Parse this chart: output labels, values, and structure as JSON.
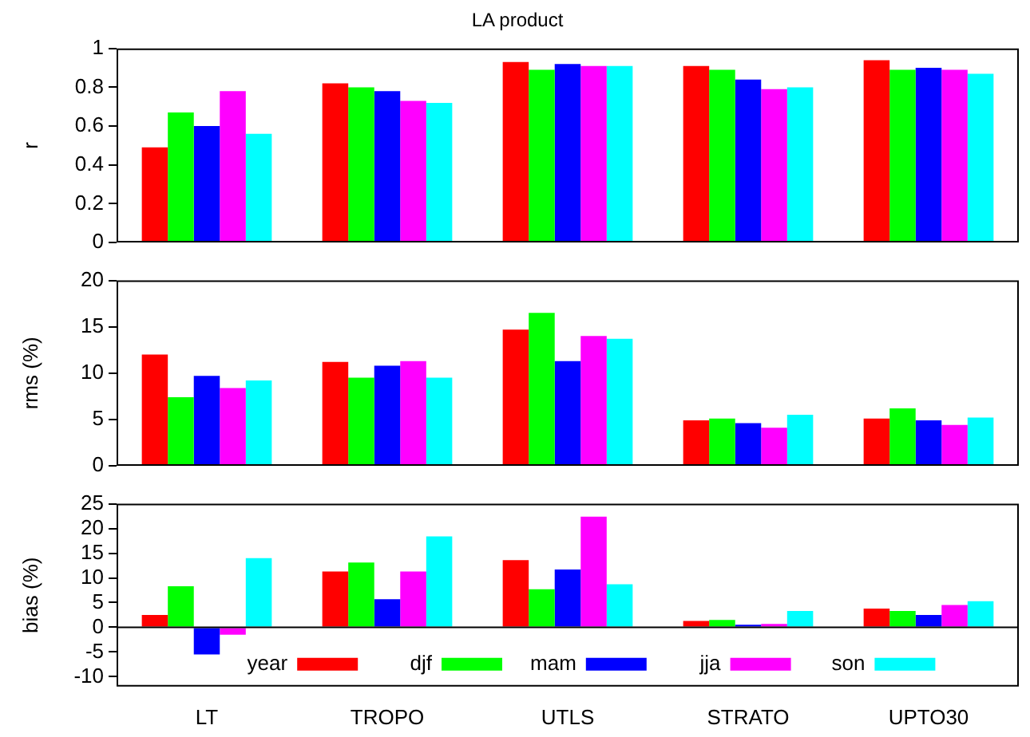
{
  "chart_data": [
    {
      "type": "bar",
      "title": "LA product",
      "ylabel": "r",
      "categories": [
        null,
        null,
        null,
        null,
        null
      ],
      "ylim": [
        0,
        1
      ],
      "yticks": [
        0,
        0.2,
        0.4,
        0.6,
        0.8,
        1
      ],
      "tick_labels": "y",
      "series": [
        {
          "color": "#ff0000",
          "values": [
            0.49,
            0.82,
            0.93,
            0.91,
            0.94
          ]
        },
        {
          "color": "#00ff00",
          "values": [
            0.67,
            0.8,
            0.89,
            0.89,
            0.89
          ]
        },
        {
          "color": "#0000ff",
          "values": [
            0.6,
            0.78,
            0.92,
            0.84,
            0.9
          ]
        },
        {
          "color": "#ff00ff",
          "values": [
            0.78,
            0.73,
            0.91,
            0.79,
            0.89
          ]
        },
        {
          "color": "#00ffff",
          "values": [
            0.56,
            0.72,
            0.91,
            0.8,
            0.87
          ]
        }
      ]
    },
    {
      "type": "bar",
      "ylabel": "rms (%)",
      "categories": [
        null,
        null,
        null,
        null,
        null
      ],
      "ylim": [
        0,
        20
      ],
      "yticks": [
        0,
        5,
        10,
        15,
        20
      ],
      "tick_labels": "y",
      "series": [
        {
          "color": "#ff0000",
          "values": [
            12.0,
            11.2,
            14.7,
            4.9,
            5.1
          ]
        },
        {
          "color": "#00ff00",
          "values": [
            7.4,
            9.5,
            16.5,
            5.1,
            6.2
          ]
        },
        {
          "color": "#0000ff",
          "values": [
            9.7,
            10.8,
            11.3,
            4.6,
            4.9
          ]
        },
        {
          "color": "#ff00ff",
          "values": [
            8.4,
            11.3,
            14.0,
            4.1,
            4.4
          ]
        },
        {
          "color": "#00ffff",
          "values": [
            9.2,
            9.5,
            13.7,
            5.5,
            5.2
          ]
        }
      ]
    },
    {
      "type": "bar",
      "ylabel": "bias (%)",
      "categories": [
        "LT",
        "TROPO",
        "UTLS",
        "STRATO",
        "UPTO30"
      ],
      "ylim": [
        -12,
        25
      ],
      "yticks": [
        -10,
        -5,
        0,
        5,
        10,
        15,
        20,
        25
      ],
      "legend": "bottom",
      "ref_lines": [
        {
          "axis": "y",
          "value": 0,
          "color": "#000000"
        }
      ],
      "series": [
        {
          "name": "year",
          "color": "#ff0000",
          "values": [
            2.5,
            11.3,
            13.6,
            1.3,
            3.8
          ]
        },
        {
          "name": "djf",
          "color": "#00ff00",
          "values": [
            8.3,
            13.1,
            7.7,
            1.5,
            3.3
          ]
        },
        {
          "name": "mam",
          "color": "#0000ff",
          "values": [
            -5.5,
            5.7,
            11.7,
            0.5,
            2.5
          ]
        },
        {
          "name": "jja",
          "color": "#ff00ff",
          "values": [
            -1.5,
            11.3,
            22.4,
            0.7,
            4.5
          ]
        },
        {
          "name": "son",
          "color": "#00ffff",
          "values": [
            14.0,
            18.4,
            8.7,
            3.3,
            5.3
          ]
        }
      ]
    }
  ]
}
